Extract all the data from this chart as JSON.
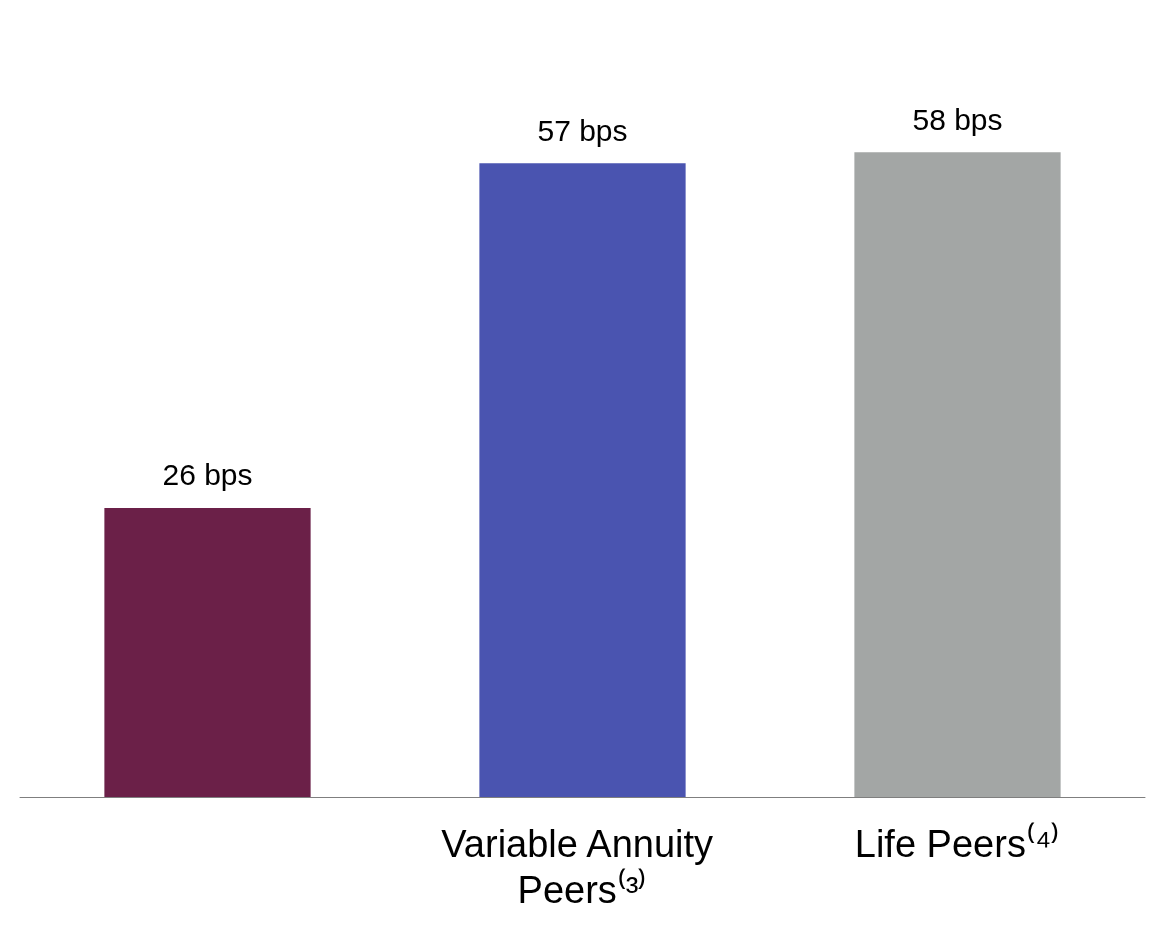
{
  "chart_data": {
    "type": "bar",
    "categories": [
      null,
      "Variable Annuity Peers⁽³⁾",
      "Life Peers⁽⁴⁾"
    ],
    "values": [
      26,
      57,
      58
    ],
    "colors": [
      "#6b2048",
      "#4a54b0",
      "#a3a6a5"
    ],
    "value_labels": [
      "26 bps",
      "57 bps",
      "58 bps"
    ]
  }
}
